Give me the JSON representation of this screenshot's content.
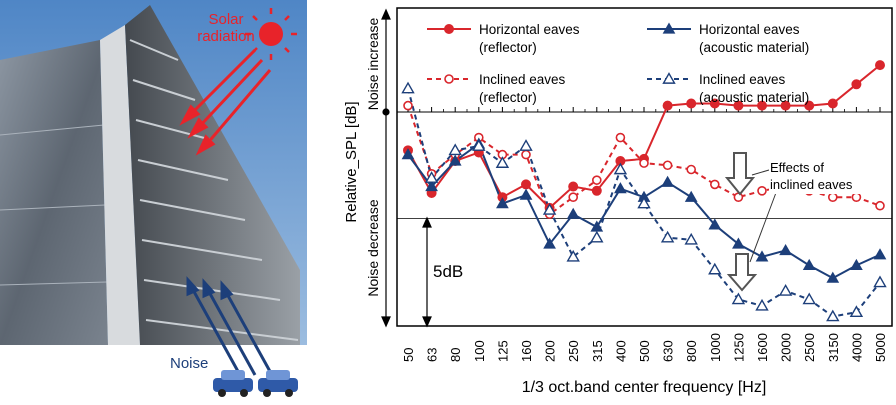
{
  "photo": {
    "solar_label_line1": "Solar",
    "solar_label_line2": "radiation",
    "noise_label": "Noise",
    "solar_color": "#e8232a",
    "noise_color": "#1d3f7a"
  },
  "chart_data": {
    "type": "line",
    "xlabel": "1/3 oct.band center frequency [Hz]",
    "ylabel": "Relative_SPL [dB]",
    "y_increase_label": "Noise increase",
    "y_decrease_label": "Noise decrease",
    "scale_label": "5dB",
    "scale_db": 5,
    "annotation_line1": "Effects of",
    "annotation_line2": "inclined eaves",
    "categories": [
      "50",
      "63",
      "80",
      "100",
      "125",
      "160",
      "200",
      "250",
      "315",
      "400",
      "500",
      "630",
      "800",
      "1000",
      "1250",
      "1600",
      "2000",
      "2500",
      "3150",
      "4000",
      "5000"
    ],
    "series": [
      {
        "name_line1": "Horizontal eaves",
        "name_line2": "(reflector)",
        "color": "#d9262c",
        "marker": "circle-filled",
        "dashed": false,
        "values": [
          -1.8,
          -3.8,
          -2.3,
          -1.9,
          -4.0,
          -3.4,
          -4.5,
          -3.5,
          -3.7,
          -2.3,
          -2.2,
          0.3,
          0.4,
          0.4,
          0.3,
          0.3,
          0.3,
          0.3,
          0.4,
          1.3,
          2.2
        ]
      },
      {
        "name_line1": "Inclined eaves",
        "name_line2": "(reflector)",
        "color": "#d9262c",
        "marker": "circle-open",
        "dashed": true,
        "values": [
          0.3,
          -2.9,
          -2.0,
          -1.2,
          -2.0,
          -2.0,
          -4.8,
          -4.0,
          -3.2,
          -1.2,
          -2.4,
          -2.5,
          -2.7,
          -3.4,
          -4.0,
          -3.7,
          -3.5,
          -3.7,
          -4.0,
          -4.0,
          -4.4
        ]
      },
      {
        "name_line1": "Horizontal eaves",
        "name_line2": "(acoustic material)",
        "color": "#1d3f7a",
        "marker": "triangle-filled",
        "dashed": false,
        "values": [
          -2.0,
          -3.5,
          -2.3,
          -1.5,
          -4.3,
          -3.9,
          -6.2,
          -4.8,
          -5.4,
          -3.6,
          -4.0,
          -3.3,
          -4.0,
          -5.3,
          -6.2,
          -6.8,
          -6.5,
          -7.2,
          -7.8,
          -7.2,
          -6.7
        ]
      },
      {
        "name_line1": "Inclined eaves",
        "name_line2": "(acoustic material)",
        "color": "#1d3f7a",
        "marker": "triangle-open",
        "dashed": true,
        "values": [
          1.1,
          -3.1,
          -1.8,
          -1.6,
          -2.4,
          -1.6,
          -4.6,
          -6.8,
          -5.9,
          -2.7,
          -4.3,
          -5.9,
          -6.0,
          -7.4,
          -8.8,
          -9.1,
          -8.4,
          -8.8,
          -9.6,
          -9.4,
          -8.0
        ]
      }
    ]
  }
}
